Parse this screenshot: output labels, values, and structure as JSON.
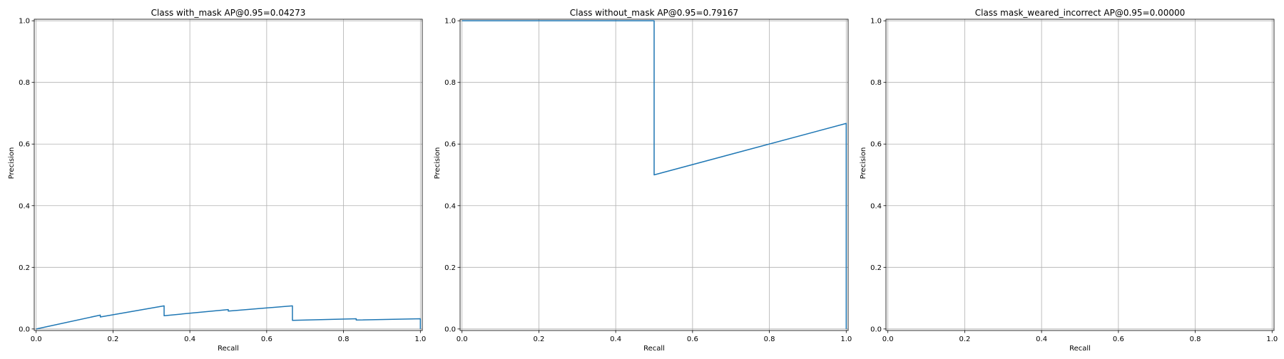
{
  "chart_data": [
    {
      "type": "line",
      "title": "Class with_mask AP@0.95=0.04273",
      "xlabel": "Recall",
      "ylabel": "Precision",
      "xlim": [
        -0.005,
        1.005
      ],
      "ylim": [
        -0.005,
        1.005
      ],
      "xticks": [
        0.0,
        0.2,
        0.4,
        0.6,
        0.8,
        1.0
      ],
      "yticks": [
        0.0,
        0.2,
        0.4,
        0.6,
        0.8,
        1.0
      ],
      "xtick_labels": [
        "0.0",
        "0.2",
        "0.4",
        "0.6",
        "0.8",
        "1.0"
      ],
      "ytick_labels": [
        "0.0",
        "0.2",
        "0.4",
        "0.6",
        "0.8",
        "1.0"
      ],
      "grid": true,
      "series": [
        {
          "color": "#1f77b4",
          "x": [
            0.0,
            0.167,
            0.167,
            0.333,
            0.333,
            0.5,
            0.5,
            0.667,
            0.667,
            0.833,
            0.833,
            1.0,
            1.0
          ],
          "y": [
            0.0,
            0.045,
            0.039,
            0.075,
            0.043,
            0.063,
            0.058,
            0.075,
            0.028,
            0.033,
            0.029,
            0.033,
            0.0
          ]
        }
      ]
    },
    {
      "type": "line",
      "title": "Class without_mask AP@0.95=0.79167",
      "xlabel": "Recall",
      "ylabel": "Precision",
      "xlim": [
        -0.005,
        1.005
      ],
      "ylim": [
        -0.005,
        1.005
      ],
      "xticks": [
        0.0,
        0.2,
        0.4,
        0.6,
        0.8,
        1.0
      ],
      "yticks": [
        0.0,
        0.2,
        0.4,
        0.6,
        0.8,
        1.0
      ],
      "xtick_labels": [
        "0.0",
        "0.2",
        "0.4",
        "0.6",
        "0.8",
        "1.0"
      ],
      "ytick_labels": [
        "0.0",
        "0.2",
        "0.4",
        "0.6",
        "0.8",
        "1.0"
      ],
      "grid": true,
      "series": [
        {
          "color": "#1f77b4",
          "x": [
            0.0,
            0.5,
            0.5,
            1.0,
            1.0
          ],
          "y": [
            1.0,
            1.0,
            0.5,
            0.667,
            0.0
          ]
        }
      ]
    },
    {
      "type": "line",
      "title": "Class mask_weared_incorrect AP@0.95=0.00000",
      "xlabel": "Recall",
      "ylabel": "Precision",
      "xlim": [
        -0.005,
        1.005
      ],
      "ylim": [
        -0.005,
        1.005
      ],
      "xticks": [
        0.0,
        0.2,
        0.4,
        0.6,
        0.8,
        1.0
      ],
      "yticks": [
        0.0,
        0.2,
        0.4,
        0.6,
        0.8,
        1.0
      ],
      "xtick_labels": [
        "0.0",
        "0.2",
        "0.4",
        "0.6",
        "0.8",
        "1.0"
      ],
      "ytick_labels": [
        "0.0",
        "0.2",
        "0.4",
        "0.6",
        "0.8",
        "1.0"
      ],
      "grid": true,
      "series": []
    }
  ]
}
